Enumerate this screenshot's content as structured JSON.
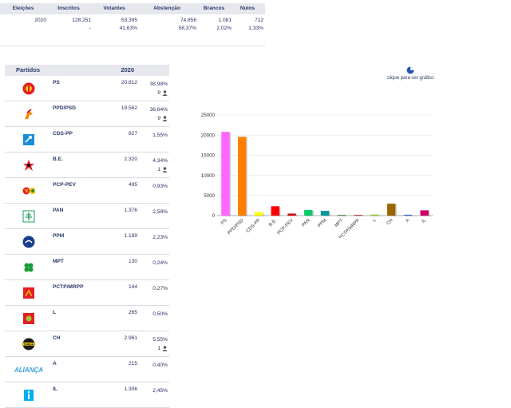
{
  "summary": {
    "headers": [
      "Eleições",
      "Inscritos",
      "Votantes",
      "Abstenção",
      "Brancos",
      "Nulos"
    ],
    "year": "2020",
    "inscritos": "128.251",
    "inscritos_pct": "-",
    "votantes": "53.395",
    "votantes_pct": "41,63%",
    "abstencao": "74.856",
    "abstencao_pct": "58,37%",
    "brancos": "1.081",
    "brancos_pct": "2,02%",
    "nulos": "712",
    "nulos_pct": "1,33%"
  },
  "parties_header": {
    "partidos": "Partidos",
    "year": "2020"
  },
  "parties": [
    {
      "name": "PS",
      "votes": "20.812",
      "pct": "38,98%",
      "seats": "9",
      "color": "#ff66ff",
      "icon": "ps-logo-icon"
    },
    {
      "name": "PPD/PSD",
      "votes": "19.562",
      "pct": "36,64%",
      "seats": "9",
      "color": "#ff8000",
      "icon": "psd-logo-icon"
    },
    {
      "name": "CDS-PP",
      "votes": "827",
      "pct": "1,55%",
      "seats": "",
      "color": "#ffff00",
      "icon": "cds-logo-icon"
    },
    {
      "name": "B.E.",
      "votes": "2.320",
      "pct": "4,34%",
      "seats": "1",
      "color": "#ff0000",
      "icon": "be-logo-icon"
    },
    {
      "name": "PCP-PEV",
      "votes": "495",
      "pct": "0,93%",
      "seats": "",
      "color": "#cc0000",
      "icon": "pcp-pev-logo-icon"
    },
    {
      "name": "PAN",
      "votes": "1.376",
      "pct": "2,58%",
      "seats": "",
      "color": "#00cc66",
      "icon": "pan-logo-icon"
    },
    {
      "name": "PPM",
      "votes": "1.189",
      "pct": "2,23%",
      "seats": "",
      "color": "#009999",
      "icon": "ppm-logo-icon"
    },
    {
      "name": "MPT",
      "votes": "130",
      "pct": "0,24%",
      "seats": "",
      "color": "#006600",
      "icon": "mpt-logo-icon"
    },
    {
      "name": "PCTP/MRPP",
      "votes": "144",
      "pct": "0,27%",
      "seats": "",
      "color": "#990000",
      "icon": "pctp-logo-icon"
    },
    {
      "name": "L",
      "votes": "265",
      "pct": "0,50%",
      "seats": "",
      "color": "#99cc33",
      "icon": "livre-logo-icon"
    },
    {
      "name": "CH",
      "votes": "2.961",
      "pct": "5,55%",
      "seats": "1",
      "color": "#996600",
      "icon": "chega-logo-icon"
    },
    {
      "name": "A",
      "votes": "215",
      "pct": "0,40%",
      "seats": "",
      "color": "#3366cc",
      "icon": "alianca-logo-icon",
      "logo_text": "ALIANÇA"
    },
    {
      "name": "IL",
      "votes": "1.306",
      "pct": "2,45%",
      "seats": "",
      "color": "#cc0066",
      "icon": "il-logo-icon"
    }
  ],
  "chart_link": "clique para ver gráfico",
  "chart_data": {
    "type": "bar",
    "categories": [
      "PS",
      "PPD/PSD",
      "CDS-PP",
      "B.E.",
      "PCP-PEV",
      "PAN",
      "PPM",
      "MPT",
      "PCTP/MRPP",
      "L",
      "CH",
      "A",
      "IL"
    ],
    "values": [
      20812,
      19562,
      827,
      2320,
      495,
      1376,
      1189,
      130,
      144,
      265,
      2961,
      215,
      1306
    ],
    "colors": [
      "#ff66ff",
      "#ff8000",
      "#ffff00",
      "#ff0000",
      "#cc0000",
      "#00cc66",
      "#009999",
      "#006600",
      "#990000",
      "#99cc33",
      "#996600",
      "#3366cc",
      "#cc0066"
    ],
    "yticks": [
      0,
      5000,
      10000,
      15000,
      20000,
      25000
    ],
    "ylim": [
      0,
      25000
    ],
    "title": "",
    "xlabel": "",
    "ylabel": ""
  }
}
